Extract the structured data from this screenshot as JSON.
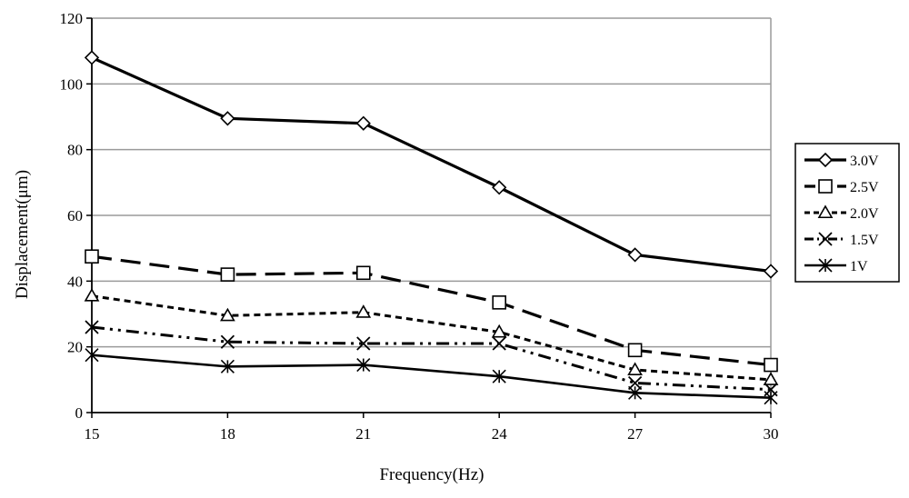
{
  "chart_data": {
    "type": "line",
    "title": "",
    "xlabel": "Frequency(Hz)",
    "ylabel": "Displacement(μm)",
    "x": [
      15,
      18,
      21,
      24,
      27,
      30
    ],
    "xlim": [
      15,
      30
    ],
    "ylim": [
      0,
      120
    ],
    "yticks": [
      0,
      20,
      40,
      60,
      80,
      100,
      120
    ],
    "grid": "horizontal",
    "legend_position": "right",
    "series": [
      {
        "name": "3.0V",
        "values": [
          108,
          89.5,
          88,
          68.5,
          48,
          43
        ],
        "marker": "diamond",
        "dash": "solid",
        "width": 3.2
      },
      {
        "name": "2.5V",
        "values": [
          47.5,
          42,
          42.5,
          33.5,
          19,
          14.5
        ],
        "marker": "square",
        "dash": "long-dash",
        "width": 3.2
      },
      {
        "name": "2.0V",
        "values": [
          35.5,
          29.5,
          30.5,
          24.5,
          13,
          10
        ],
        "marker": "triangle",
        "dash": "short-dash",
        "width": 3.0
      },
      {
        "name": "1.5V",
        "values": [
          26,
          21.5,
          21,
          21,
          9,
          7
        ],
        "marker": "x",
        "dash": "dash-dot-dot",
        "width": 3.0
      },
      {
        "name": "1V",
        "values": [
          17.5,
          14,
          14.5,
          11,
          6,
          4.5
        ],
        "marker": "asterisk",
        "dash": "solid",
        "width": 2.6
      }
    ]
  }
}
